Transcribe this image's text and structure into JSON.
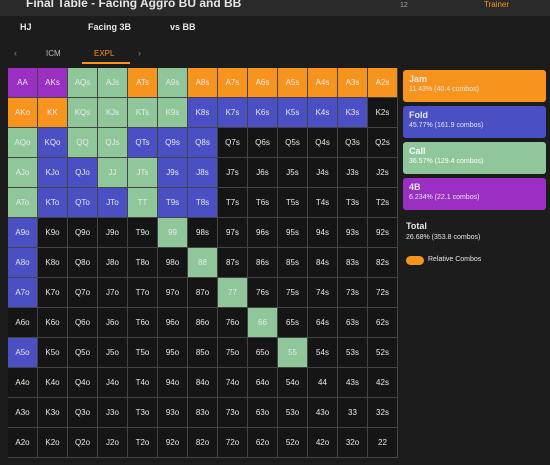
{
  "header": {
    "title": "Final Table - Facing Aggro BU and BB",
    "badge": "12",
    "link": "Trainer",
    "filters": [
      "HJ",
      "Facing 3B",
      "vs BB"
    ],
    "tabs": [
      "ICM",
      "EXPL"
    ]
  },
  "grid": {
    "rows": [
      [
        "AA",
        "AKs",
        "AQs",
        "AJs",
        "ATs",
        "A9s",
        "A8s",
        "A7s",
        "A6s",
        "A5s",
        "A4s",
        "A3s",
        "A2s"
      ],
      [
        "AKo",
        "KK",
        "KQs",
        "KJs",
        "KTs",
        "K9s",
        "K8s",
        "K7s",
        "K6s",
        "K5s",
        "K4s",
        "K3s",
        "K2s"
      ],
      [
        "AQo",
        "KQo",
        "QQ",
        "QJs",
        "QTs",
        "Q9s",
        "Q8s",
        "Q7s",
        "Q6s",
        "Q5s",
        "Q4s",
        "Q3s",
        "Q2s"
      ],
      [
        "AJo",
        "KJo",
        "QJo",
        "JJ",
        "JTs",
        "J9s",
        "J8s",
        "J7s",
        "J6s",
        "J5s",
        "J4s",
        "J3s",
        "J2s"
      ],
      [
        "ATo",
        "KTo",
        "QTo",
        "JTo",
        "TT",
        "T9s",
        "T8s",
        "T7s",
        "T6s",
        "T5s",
        "T4s",
        "T3s",
        "T2s"
      ],
      [
        "A9o",
        "K9o",
        "Q9o",
        "J9o",
        "T9o",
        "99",
        "98s",
        "97s",
        "96s",
        "95s",
        "94s",
        "93s",
        "92s"
      ],
      [
        "A8o",
        "K8o",
        "Q8o",
        "J8o",
        "T8o",
        "98o",
        "88",
        "87s",
        "86s",
        "85s",
        "84s",
        "83s",
        "82s"
      ],
      [
        "A7o",
        "K7o",
        "Q7o",
        "J7o",
        "T7o",
        "97o",
        "87o",
        "77",
        "76s",
        "75s",
        "74s",
        "73s",
        "72s"
      ],
      [
        "A6o",
        "K6o",
        "Q6o",
        "J6o",
        "T6o",
        "96o",
        "86o",
        "76o",
        "66",
        "65s",
        "64s",
        "63s",
        "62s"
      ],
      [
        "A5o",
        "K5o",
        "Q5o",
        "J5o",
        "T5o",
        "95o",
        "85o",
        "75o",
        "65o",
        "55",
        "54s",
        "53s",
        "52s"
      ],
      [
        "A4o",
        "K4o",
        "Q4o",
        "J4o",
        "T4o",
        "94o",
        "84o",
        "74o",
        "64o",
        "54o",
        "44",
        "43s",
        "42s"
      ],
      [
        "A3o",
        "K3o",
        "Q3o",
        "J3o",
        "T3o",
        "93o",
        "83o",
        "73o",
        "63o",
        "53o",
        "43o",
        "33",
        "32s"
      ],
      [
        "A2o",
        "K2o",
        "Q2o",
        "J2o",
        "T2o",
        "92o",
        "82o",
        "72o",
        "62o",
        "52o",
        "42o",
        "32o",
        "22"
      ]
    ]
  },
  "legend": [
    {
      "action": "Jam",
      "stats": "11.43% (40.4 combos)"
    },
    {
      "action": "Fold",
      "stats": "45.77% (161.9 combos)"
    },
    {
      "action": "Call",
      "stats": "36.57% (129.4 combos)"
    },
    {
      "action": "4B",
      "stats": "6.234% (22.1 combos)"
    }
  ],
  "total": {
    "label": "Total",
    "stats": "26.68% (353.8 combos)"
  },
  "toggle": "Relative Combos"
}
